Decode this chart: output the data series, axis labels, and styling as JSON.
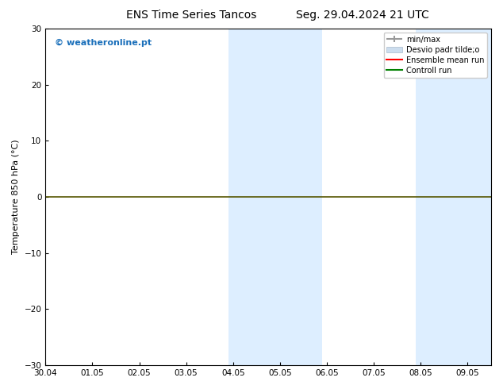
{
  "title_left": "ENS Time Series Tancos",
  "title_right": "Seg. 29.04.2024 21 UTC",
  "ylabel": "Temperature 850 hPa (°C)",
  "watermark": "© weatheronline.pt",
  "watermark_color": "#1a6fba",
  "xlim_start": 0,
  "xlim_end": 9.5,
  "ylim": [
    -30,
    30
  ],
  "yticks": [
    -30,
    -20,
    -10,
    0,
    10,
    20,
    30
  ],
  "xtick_labels": [
    "30.04",
    "01.05",
    "02.05",
    "03.05",
    "04.05",
    "05.05",
    "06.05",
    "07.05",
    "08.05",
    "09.05"
  ],
  "xtick_positions": [
    0,
    1,
    2,
    3,
    4,
    5,
    6,
    7,
    8,
    9
  ],
  "shaded_bands": [
    {
      "x_start": 3.9,
      "x_end": 4.5,
      "color": "#ddeeff"
    },
    {
      "x_start": 4.5,
      "x_end": 5.9,
      "color": "#ddeeff"
    },
    {
      "x_start": 7.9,
      "x_end": 8.5,
      "color": "#ddeeff"
    },
    {
      "x_start": 8.5,
      "x_end": 9.5,
      "color": "#ddeeff"
    }
  ],
  "hline_y": 0,
  "hline_color": "#555500",
  "hline_lw": 1.2,
  "legend_labels": [
    "min/max",
    "Desvio padr tilde;o",
    "Ensemble mean run",
    "Controll run"
  ],
  "legend_colors": [
    "#999999",
    "#ccddee",
    "red",
    "green"
  ],
  "background_color": "#ffffff",
  "title_fontsize": 10,
  "tick_fontsize": 7.5,
  "ylabel_fontsize": 8
}
